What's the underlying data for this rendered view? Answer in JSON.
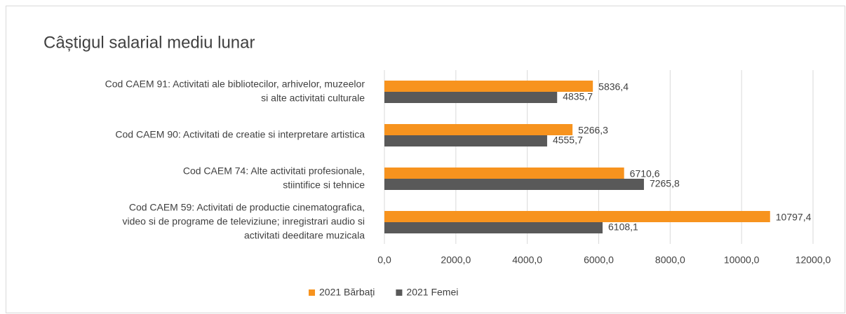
{
  "chart_data": {
    "type": "barh",
    "title": "Câștigul salarial mediu lunar",
    "categories": [
      [
        "Cod CAEM 91: Activitati ale bibliotecilor, arhivelor, muzeelor",
        "si alte activitati culturale"
      ],
      [
        "Cod CAEM 90: Activitati de creatie si interpretare artistica"
      ],
      [
        "Cod CAEM 74: Alte activitati profesionale,",
        "stiintifice si tehnice"
      ],
      [
        "Cod CAEM 59: Activitati de productie cinematografica,",
        "video si de programe de televiziune; inregistrari audio si",
        "activitati deeditare muzicala"
      ]
    ],
    "series": [
      {
        "name": "2021 Bărbați",
        "color": "#f7931e",
        "values": [
          5836.4,
          5266.3,
          6710.6,
          10797.4
        ],
        "value_labels": [
          "5836,4",
          "5266,3",
          "6710,6",
          "10797,4"
        ]
      },
      {
        "name": "2021 Femei",
        "color": "#595959",
        "values": [
          4835.7,
          4555.7,
          7265.8,
          6108.1
        ],
        "value_labels": [
          "4835,7",
          "4555,7",
          "7265,8",
          "6108,1"
        ]
      }
    ],
    "xlim": [
      0,
      12000
    ],
    "xticks": [
      {
        "value": 0,
        "label": "0,0"
      },
      {
        "value": 2000,
        "label": "2000,0"
      },
      {
        "value": 4000,
        "label": "4000,0"
      },
      {
        "value": 6000,
        "label": "6000,0"
      },
      {
        "value": 8000,
        "label": "8000,0"
      },
      {
        "value": 10000,
        "label": "10000,0"
      },
      {
        "value": 12000,
        "label": "12000,0"
      }
    ],
    "grid": true,
    "legend": "bottom"
  }
}
